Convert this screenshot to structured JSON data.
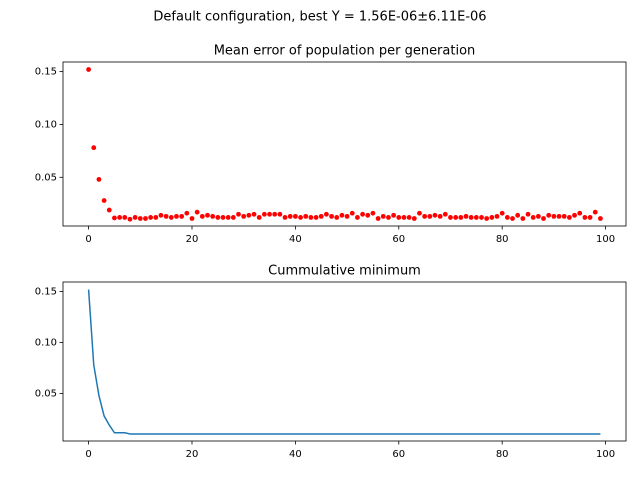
{
  "figure_title": "Default configuration, best Y = 1.56E-06±6.11E-06",
  "chart_data": [
    {
      "type": "scatter",
      "title": "Mean error of population per generation",
      "color": "#ff0000",
      "x": [
        0,
        1,
        2,
        3,
        4,
        5,
        6,
        7,
        8,
        9,
        10,
        11,
        12,
        13,
        14,
        15,
        16,
        17,
        18,
        19,
        20,
        21,
        22,
        23,
        24,
        25,
        26,
        27,
        28,
        29,
        30,
        31,
        32,
        33,
        34,
        35,
        36,
        37,
        38,
        39,
        40,
        41,
        42,
        43,
        44,
        45,
        46,
        47,
        48,
        49,
        50,
        51,
        52,
        53,
        54,
        55,
        56,
        57,
        58,
        59,
        60,
        61,
        62,
        63,
        64,
        65,
        66,
        67,
        68,
        69,
        70,
        71,
        72,
        73,
        74,
        75,
        76,
        77,
        78,
        79,
        80,
        81,
        82,
        83,
        84,
        85,
        86,
        87,
        88,
        89,
        90,
        91,
        92,
        93,
        94,
        95,
        96,
        97,
        98,
        99
      ],
      "values": [
        0.152,
        0.078,
        0.048,
        0.028,
        0.019,
        0.0115,
        0.012,
        0.012,
        0.0103,
        0.012,
        0.011,
        0.011,
        0.012,
        0.012,
        0.014,
        0.013,
        0.012,
        0.013,
        0.013,
        0.016,
        0.011,
        0.017,
        0.013,
        0.014,
        0.013,
        0.012,
        0.012,
        0.012,
        0.012,
        0.015,
        0.013,
        0.014,
        0.015,
        0.012,
        0.015,
        0.015,
        0.015,
        0.015,
        0.012,
        0.013,
        0.013,
        0.012,
        0.013,
        0.012,
        0.012,
        0.013,
        0.015,
        0.013,
        0.012,
        0.014,
        0.013,
        0.016,
        0.012,
        0.015,
        0.014,
        0.016,
        0.011,
        0.013,
        0.012,
        0.014,
        0.012,
        0.012,
        0.012,
        0.011,
        0.016,
        0.013,
        0.013,
        0.014,
        0.013,
        0.015,
        0.012,
        0.012,
        0.012,
        0.013,
        0.012,
        0.012,
        0.012,
        0.011,
        0.012,
        0.013,
        0.016,
        0.012,
        0.011,
        0.014,
        0.011,
        0.015,
        0.012,
        0.013,
        0.011,
        0.014,
        0.013,
        0.013,
        0.013,
        0.012,
        0.014,
        0.016,
        0.012,
        0.012,
        0.017,
        0.011
      ],
      "xlim": [
        -4.95,
        103.95
      ],
      "xticks": [
        0,
        20,
        40,
        60,
        80,
        100
      ],
      "ylim": [
        0.0039,
        0.1591
      ],
      "yticks": [
        0.05,
        {
          "value": 0.1,
          "label": "0.10"
        },
        0.15
      ]
    },
    {
      "type": "line",
      "title": "Cummulative minimum",
      "color": "#1f77b4",
      "x": [
        0,
        1,
        2,
        3,
        4,
        5,
        6,
        7,
        8,
        9,
        10,
        11,
        12,
        13,
        14,
        15,
        16,
        17,
        18,
        19,
        20,
        21,
        22,
        23,
        24,
        25,
        26,
        27,
        28,
        29,
        30,
        31,
        32,
        33,
        34,
        35,
        36,
        37,
        38,
        39,
        40,
        41,
        42,
        43,
        44,
        45,
        46,
        47,
        48,
        49,
        50,
        51,
        52,
        53,
        54,
        55,
        56,
        57,
        58,
        59,
        60,
        61,
        62,
        63,
        64,
        65,
        66,
        67,
        68,
        69,
        70,
        71,
        72,
        73,
        74,
        75,
        76,
        77,
        78,
        79,
        80,
        81,
        82,
        83,
        84,
        85,
        86,
        87,
        88,
        89,
        90,
        91,
        92,
        93,
        94,
        95,
        96,
        97,
        98,
        99
      ],
      "values": [
        0.152,
        0.078,
        0.048,
        0.028,
        0.019,
        0.0115,
        0.0115,
        0.0115,
        0.0103,
        0.0103,
        0.0103,
        0.0103,
        0.0103,
        0.0103,
        0.0103,
        0.0103,
        0.0103,
        0.0103,
        0.0103,
        0.0103,
        0.0103,
        0.0103,
        0.0103,
        0.0103,
        0.0103,
        0.0103,
        0.0103,
        0.0103,
        0.0103,
        0.0103,
        0.0103,
        0.0103,
        0.0103,
        0.0103,
        0.0103,
        0.0103,
        0.0103,
        0.0103,
        0.0103,
        0.0103,
        0.0103,
        0.0103,
        0.0103,
        0.0103,
        0.0103,
        0.0103,
        0.0103,
        0.0103,
        0.0103,
        0.0103,
        0.0103,
        0.0103,
        0.0103,
        0.0103,
        0.0103,
        0.0103,
        0.0103,
        0.0103,
        0.0103,
        0.0103,
        0.0103,
        0.0103,
        0.0103,
        0.0103,
        0.0103,
        0.0103,
        0.0103,
        0.0103,
        0.0103,
        0.0103,
        0.0103,
        0.0103,
        0.0103,
        0.0103,
        0.0103,
        0.0103,
        0.0103,
        0.0103,
        0.0103,
        0.0103,
        0.0103,
        0.0103,
        0.0103,
        0.0103,
        0.0103,
        0.0103,
        0.0103,
        0.0103,
        0.0103,
        0.0103,
        0.0103,
        0.0103,
        0.0103,
        0.0103,
        0.0103,
        0.0103,
        0.0103,
        0.0103,
        0.0103,
        0.0103
      ],
      "xlim": [
        -4.95,
        103.95
      ],
      "xticks": [
        0,
        20,
        40,
        60,
        80,
        100
      ],
      "ylim": [
        0.0034,
        0.1594
      ],
      "yticks": [
        0.05,
        {
          "value": 0.1,
          "label": "0.10"
        },
        0.15
      ]
    }
  ]
}
